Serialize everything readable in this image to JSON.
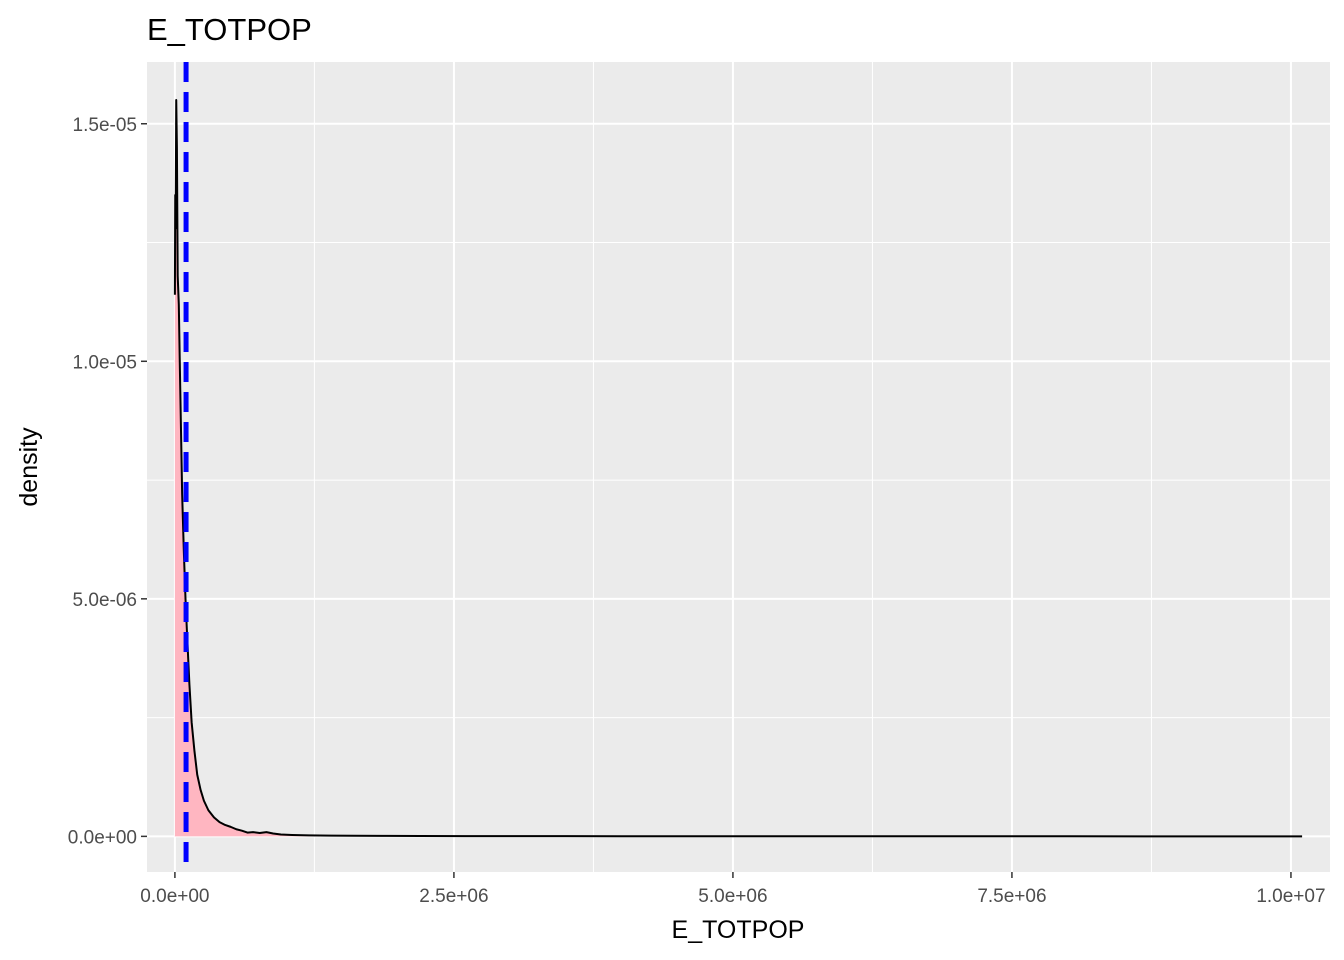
{
  "chart_data": {
    "type": "area",
    "title": "E_TOTPOP",
    "xlabel": "E_TOTPOP",
    "ylabel": "density",
    "xlim": [
      -250000,
      10350000
    ],
    "ylim": [
      -7.5e-07,
      1.63e-05
    ],
    "x_ticks": [
      {
        "value": 0,
        "label": "0.0e+00"
      },
      {
        "value": 2500000,
        "label": "2.5e+06"
      },
      {
        "value": 5000000,
        "label": "5.0e+06"
      },
      {
        "value": 7500000,
        "label": "7.5e+06"
      },
      {
        "value": 10000000,
        "label": "1.0e+07"
      }
    ],
    "y_ticks": [
      {
        "value": 0,
        "label": "0.0e+00"
      },
      {
        "value": 5e-06,
        "label": "5.0e-06"
      },
      {
        "value": 1e-05,
        "label": "1.0e-05"
      },
      {
        "value": 1.5e-05,
        "label": "1.5e-05"
      }
    ],
    "grid": true,
    "legend": "none",
    "series": [
      {
        "fill": "#ffb6c1",
        "stroke": "#000000",
        "points": [
          [
            0,
            1.14e-05
          ],
          [
            3000,
            1.35e-05
          ],
          [
            7000,
            1.28e-05
          ],
          [
            12000,
            1.55e-05
          ],
          [
            18000,
            1.45e-05
          ],
          [
            25000,
            1.18e-05
          ],
          [
            35000,
            1.12e-05
          ],
          [
            45000,
            9.8e-06
          ],
          [
            55000,
            8.5e-06
          ],
          [
            65000,
            7.2e-06
          ],
          [
            80000,
            6e-06
          ],
          [
            95000,
            5e-06
          ],
          [
            110000,
            4.2e-06
          ],
          [
            130000,
            3.2e-06
          ],
          [
            150000,
            2.4e-06
          ],
          [
            175000,
            1.8e-06
          ],
          [
            200000,
            1.3e-06
          ],
          [
            230000,
            9.8e-07
          ],
          [
            260000,
            7.5e-07
          ],
          [
            300000,
            5.5e-07
          ],
          [
            350000,
            4e-07
          ],
          [
            400000,
            3e-07
          ],
          [
            450000,
            2.4e-07
          ],
          [
            500000,
            2e-07
          ],
          [
            550000,
            1.5e-07
          ],
          [
            600000,
            1.2e-07
          ],
          [
            650000,
            8e-08
          ],
          [
            700000,
            9e-08
          ],
          [
            760000,
            7e-08
          ],
          [
            820000,
            9e-08
          ],
          [
            880000,
            6e-08
          ],
          [
            950000,
            4e-08
          ],
          [
            1050000,
            3e-08
          ],
          [
            1200000,
            2e-08
          ],
          [
            1400000,
            1.5e-08
          ],
          [
            1600000,
            1.2e-08
          ],
          [
            1900000,
            1e-08
          ],
          [
            2200000,
            8e-09
          ],
          [
            2600000,
            6e-09
          ],
          [
            3000000,
            5e-09
          ],
          [
            3500000,
            4e-09
          ],
          [
            4000000,
            3e-09
          ],
          [
            4500000,
            3e-09
          ],
          [
            5200000,
            2e-09
          ],
          [
            6000000,
            2e-09
          ],
          [
            7000000,
            1.5e-09
          ],
          [
            8000000,
            1.5e-09
          ],
          [
            9000000,
            1e-09
          ],
          [
            10100000,
            1e-09
          ]
        ]
      }
    ],
    "vline": {
      "x": 100000,
      "color": "#0000ff",
      "style": "dashed"
    }
  }
}
